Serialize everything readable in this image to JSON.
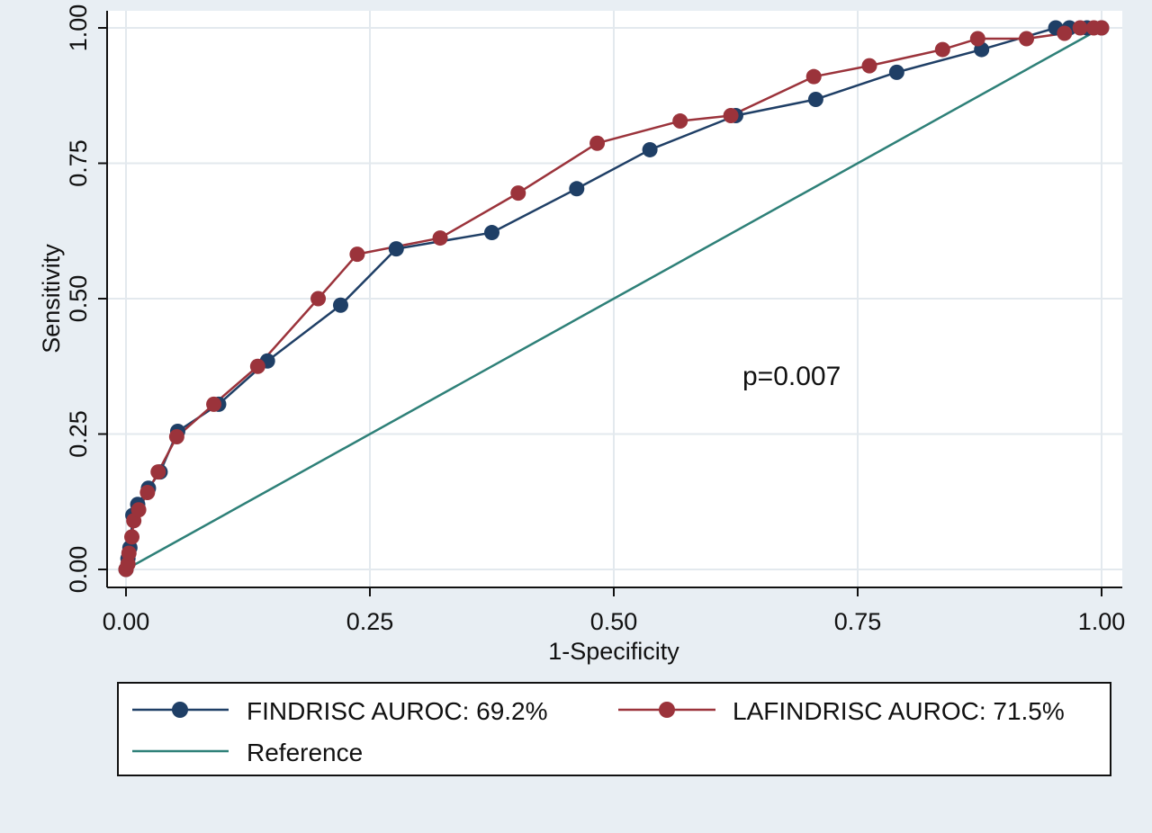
{
  "chart_data": {
    "type": "line",
    "xlabel": "1-Specificity",
    "ylabel": "Sensitivity",
    "xlim": [
      0,
      1
    ],
    "ylim": [
      0,
      1
    ],
    "x_ticks": [
      "0.00",
      "0.25",
      "0.50",
      "0.75",
      "1.00"
    ],
    "y_ticks": [
      "0.00",
      "0.25",
      "0.50",
      "0.75",
      "1.00"
    ],
    "grid": true,
    "annotation": "p=0.007",
    "legend_position": "bottom",
    "series": [
      {
        "name": "FINDRISC AUROC: 69.2%",
        "color": "#1f3f66",
        "marker": "circle",
        "points": [
          [
            0.0,
            0.0
          ],
          [
            0.002,
            0.02
          ],
          [
            0.004,
            0.04
          ],
          [
            0.007,
            0.1
          ],
          [
            0.012,
            0.12
          ],
          [
            0.023,
            0.15
          ],
          [
            0.035,
            0.18
          ],
          [
            0.053,
            0.255
          ],
          [
            0.095,
            0.305
          ],
          [
            0.145,
            0.385
          ],
          [
            0.22,
            0.488
          ],
          [
            0.277,
            0.592
          ],
          [
            0.375,
            0.622
          ],
          [
            0.462,
            0.703
          ],
          [
            0.537,
            0.775
          ],
          [
            0.625,
            0.838
          ],
          [
            0.707,
            0.868
          ],
          [
            0.79,
            0.918
          ],
          [
            0.877,
            0.96
          ],
          [
            0.953,
            1.0
          ],
          [
            0.967,
            1.0
          ],
          [
            0.985,
            1.0
          ],
          [
            1.0,
            1.0
          ]
        ]
      },
      {
        "name": "LAFINDRISC AUROC: 71.5%",
        "color": "#9b333b",
        "marker": "circle",
        "points": [
          [
            0.0,
            0.0
          ],
          [
            0.002,
            0.01
          ],
          [
            0.003,
            0.03
          ],
          [
            0.006,
            0.06
          ],
          [
            0.008,
            0.09
          ],
          [
            0.013,
            0.11
          ],
          [
            0.022,
            0.142
          ],
          [
            0.033,
            0.18
          ],
          [
            0.052,
            0.245
          ],
          [
            0.09,
            0.305
          ],
          [
            0.135,
            0.375
          ],
          [
            0.197,
            0.5
          ],
          [
            0.237,
            0.582
          ],
          [
            0.322,
            0.612
          ],
          [
            0.402,
            0.695
          ],
          [
            0.483,
            0.787
          ],
          [
            0.568,
            0.828
          ],
          [
            0.62,
            0.838
          ],
          [
            0.705,
            0.91
          ],
          [
            0.762,
            0.93
          ],
          [
            0.837,
            0.96
          ],
          [
            0.873,
            0.98
          ],
          [
            0.923,
            0.98
          ],
          [
            0.962,
            0.99
          ],
          [
            0.978,
            1.0
          ],
          [
            0.992,
            1.0
          ],
          [
            1.0,
            1.0
          ]
        ]
      },
      {
        "name": "Reference",
        "color": "#2e8078",
        "marker": "none",
        "points": [
          [
            0,
            0
          ],
          [
            1,
            1
          ]
        ]
      }
    ]
  }
}
